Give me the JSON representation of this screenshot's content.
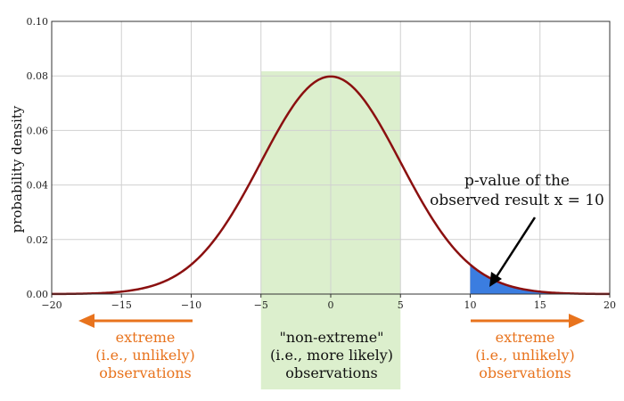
{
  "chart_data": {
    "type": "line",
    "title": "",
    "xlabel": "",
    "ylabel": "probability density",
    "xlim": [
      -20,
      20
    ],
    "ylim": [
      0,
      0.1
    ],
    "x_ticks": [
      -20,
      -15,
      -10,
      -5,
      0,
      5,
      10,
      15,
      20
    ],
    "x_tick_labels": [
      "−20",
      "−15",
      "−10",
      "−5",
      "0",
      "5",
      "10",
      "15",
      "20"
    ],
    "y_ticks": [
      0,
      0.02,
      0.04,
      0.06,
      0.08,
      0.1
    ],
    "y_tick_labels": [
      "0.00",
      "0.02",
      "0.04",
      "0.06",
      "0.08",
      "0.10"
    ],
    "grid": true,
    "series": [
      {
        "distribution": "normal",
        "mean": 0,
        "sd": 5,
        "color": "#8b1010"
      }
    ],
    "shaded_regions": [
      {
        "role": "non-extreme",
        "x_range": [
          -5,
          5
        ],
        "color": "#dcefcd"
      },
      {
        "role": "p-value tail",
        "x_range": [
          10,
          20
        ],
        "color": "#3b7de0"
      }
    ],
    "annotations": {
      "pvalue_line1": "p-value of the",
      "pvalue_line2": "observed result x = 10",
      "left_line1": "extreme",
      "left_line2": "(i.e., unlikely)",
      "left_line3": "observations",
      "center_line1": "\"non-extreme\"",
      "center_line2": "(i.e., more likely)",
      "center_line3": "observations",
      "right_line1": "extreme",
      "right_line2": "(i.e., unlikely)",
      "right_line3": "observations",
      "arrow_color": "#e8731d"
    }
  }
}
